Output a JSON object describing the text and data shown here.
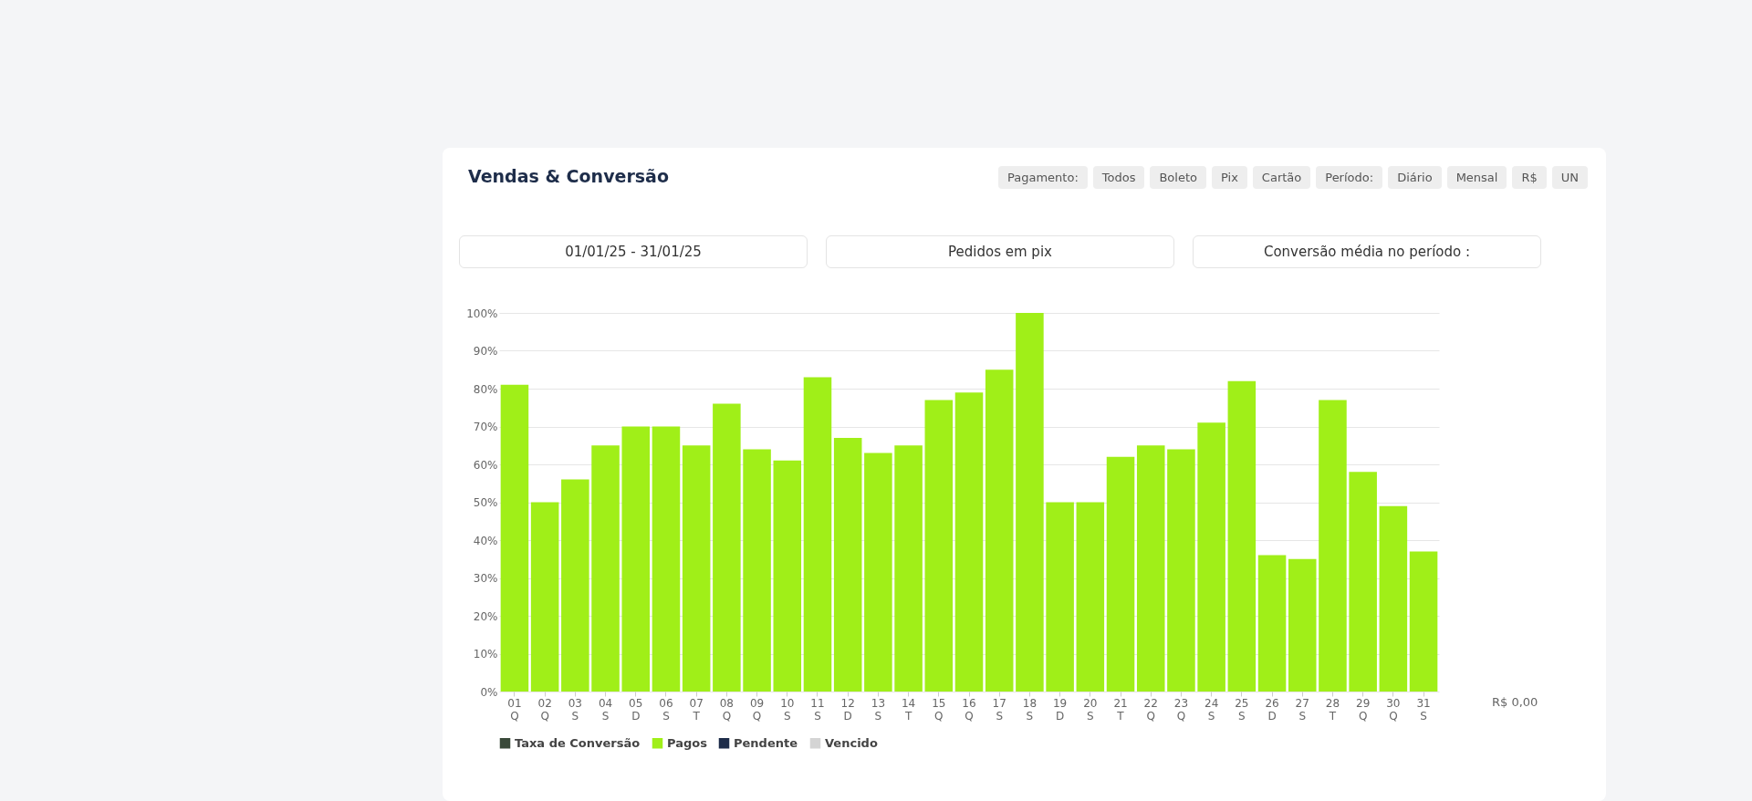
{
  "chart_data": {
    "type": "bar",
    "title": "Vendas & Conversão",
    "annotations": [
      "Pagamento:",
      "Todos",
      "Boleto",
      "Pix",
      "Cartão",
      "Período:",
      "Diário",
      "Mensal",
      "R$",
      "UN",
      "01/01/25 - 31/01/25",
      "Pedidos em pix",
      "Conversão média no período :",
      "R$ 0,00"
    ],
    "categories": [
      "01\nQ",
      "02\nQ",
      "03\nS",
      "04\nS",
      "05\nD",
      "06\nS",
      "07\nT",
      "08\nQ",
      "09\nQ",
      "10\nS",
      "11\nS",
      "12\nD",
      "13\nS",
      "14\nT",
      "15\nQ",
      "16\nQ",
      "17\nS",
      "18\nS",
      "19\nD",
      "20\nS",
      "21\nT",
      "22\nQ",
      "23\nQ",
      "24\nS",
      "25\nS",
      "26\nD",
      "27\nS",
      "28\nT",
      "29\nQ",
      "30\nQ",
      "31\nS"
    ],
    "series": [
      {
        "name": "Taxa de Conversão",
        "type": "line",
        "color": "#3a4a3a",
        "values": [
          null,
          null,
          null,
          null,
          null,
          null,
          null,
          null,
          null,
          null,
          null,
          null,
          null,
          null,
          null,
          null,
          null,
          null,
          null,
          null,
          null,
          null,
          null,
          null,
          null,
          null,
          null,
          null,
          null,
          null,
          null
        ]
      },
      {
        "name": "Pagos",
        "color": "#a0ef18",
        "values": [
          81,
          50,
          56,
          65,
          70,
          70,
          65,
          76,
          64,
          61,
          83,
          67,
          63,
          65,
          77,
          79,
          85,
          100,
          50,
          50,
          62,
          65,
          64,
          71,
          82,
          36,
          35,
          77,
          58,
          49,
          37
        ]
      },
      {
        "name": "Pendente",
        "color": "#1e2d4a",
        "values": [
          null,
          null,
          null,
          null,
          null,
          null,
          null,
          null,
          null,
          null,
          null,
          null,
          null,
          null,
          null,
          null,
          null,
          null,
          null,
          null,
          null,
          null,
          null,
          null,
          null,
          null,
          null,
          null,
          null,
          null,
          null
        ]
      },
      {
        "name": "Vencido",
        "color": "#d4d4d4",
        "values": [
          null,
          null,
          null,
          null,
          null,
          null,
          null,
          null,
          null,
          null,
          null,
          null,
          null,
          null,
          null,
          null,
          null,
          null,
          null,
          null,
          null,
          null,
          null,
          null,
          null,
          null,
          null,
          null,
          null,
          null,
          null
        ]
      }
    ],
    "ylim": [
      0,
      100
    ],
    "yticks": [
      {
        "value": 0,
        "label": "0%"
      },
      {
        "value": 10,
        "label": "10%"
      },
      {
        "value": 20,
        "label": "20%"
      },
      {
        "value": 30,
        "label": "30%"
      },
      {
        "value": 40,
        "label": "40%"
      },
      {
        "value": 50,
        "label": "50%"
      },
      {
        "value": 60,
        "label": "60%"
      },
      {
        "value": 70,
        "label": "70%"
      },
      {
        "value": 80,
        "label": "80%"
      },
      {
        "value": 90,
        "label": "90%"
      },
      {
        "value": 100,
        "label": "100%"
      }
    ],
    "grid": "y",
    "legend": "bottom"
  }
}
